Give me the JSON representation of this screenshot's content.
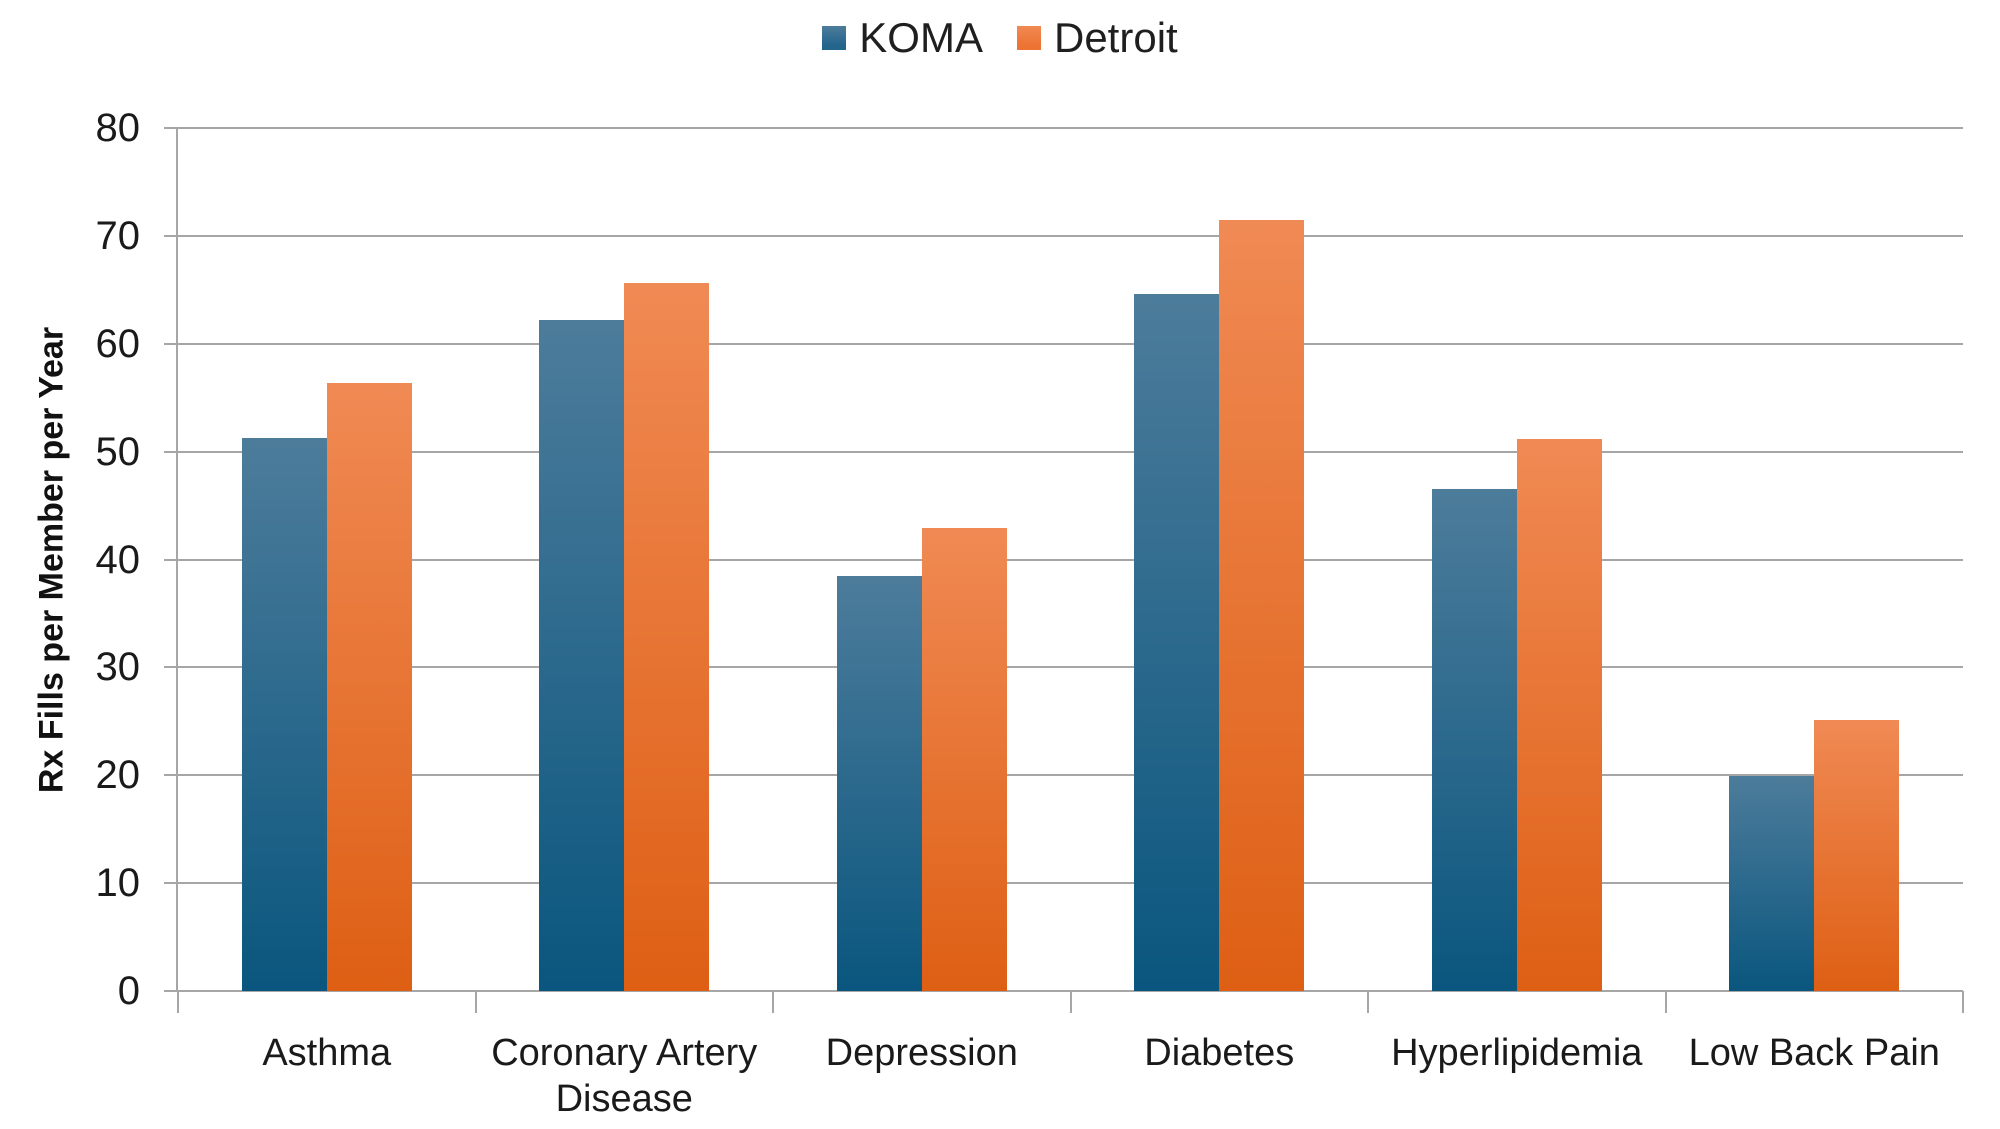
{
  "chart_data": {
    "type": "bar",
    "categories": [
      "Asthma",
      "Coronary Artery Disease",
      "Depression",
      "Diabetes",
      "Hyperlipidemia",
      "Low Back Pain"
    ],
    "series": [
      {
        "name": "KOMA",
        "values": [
          51.3,
          62.2,
          38.5,
          64.6,
          46.5,
          19.9
        ],
        "bar_gradient_top": "#4d7c9b",
        "bar_gradient_bottom": "#0a567e",
        "legend_color": "#24658c"
      },
      {
        "name": "Detroit",
        "values": [
          56.4,
          65.6,
          42.9,
          71.5,
          51.2,
          25.1
        ],
        "bar_gradient_top": "#f08a54",
        "bar_gradient_bottom": "#de5f14",
        "legend_color": "#ed7333"
      }
    ],
    "title": "",
    "xlabel": "",
    "ylabel": "Rx Fills per Member per Year",
    "ylim": [
      0,
      80
    ],
    "yticks": [
      0,
      10,
      20,
      30,
      40,
      50,
      60,
      70,
      80
    ],
    "grid": true,
    "legend_position": "top",
    "colors": {
      "gridline": "#a6a6a6",
      "axis": "#a6a6a6",
      "text": "#1a1a1a"
    }
  }
}
